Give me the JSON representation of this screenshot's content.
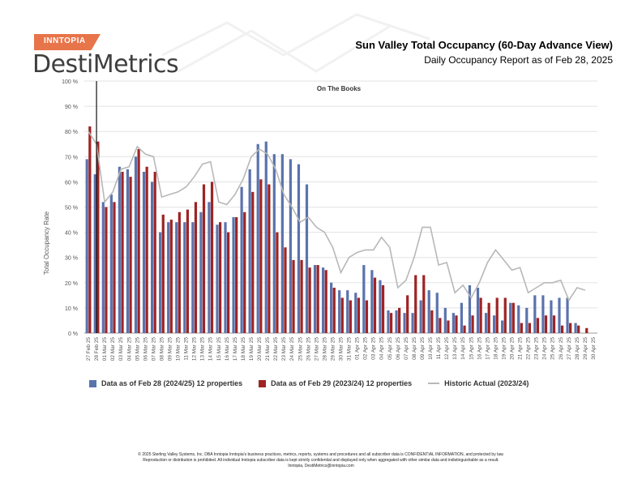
{
  "brand": {
    "tag": "INNTOPIA",
    "name": "DestiMetrics"
  },
  "header": {
    "title": "Sun Valley Total Occupancy (60-Day Advance View)",
    "subtitle": "Daily Occupancy Report as of Feb 28, 2025"
  },
  "colors": {
    "series_current": "#5b73ad",
    "series_prior": "#9e2424",
    "historic": "#b8b8b8",
    "brand_orange": "#e8744a"
  },
  "chart_data": {
    "type": "bar",
    "title": "",
    "annotation": "On The Books",
    "ylabel": "Total Occupancy Rate",
    "xlabel": "",
    "ylim": [
      0,
      100
    ],
    "yticks": [
      "0 %",
      "10 %",
      "20 %",
      "30 %",
      "40 %",
      "50 %",
      "60 %",
      "70 %",
      "80 %",
      "90 %",
      "100 %"
    ],
    "grid": true,
    "legend_position": "bottom",
    "categories": [
      "27 Feb 25",
      "28 Feb 25",
      "01 Mar 25",
      "02 Mar 25",
      "03 Mar 25",
      "04 Mar 25",
      "05 Mar 25",
      "06 Mar 25",
      "07 Mar 25",
      "08 Mar 25",
      "09 Mar 25",
      "10 Mar 25",
      "11 Mar 25",
      "12 Mar 25",
      "13 Mar 25",
      "14 Mar 25",
      "15 Mar 25",
      "16 Mar 25",
      "17 Mar 25",
      "18 Mar 25",
      "19 Mar 25",
      "20 Mar 25",
      "21 Mar 25",
      "22 Mar 25",
      "23 Mar 25",
      "24 Mar 25",
      "25 Mar 25",
      "26 Mar 25",
      "27 Mar 25",
      "28 Mar 25",
      "29 Mar 25",
      "30 Mar 25",
      "31 Mar 25",
      "01 Apr 25",
      "02 Apr 25",
      "03 Apr 25",
      "04 Apr 25",
      "05 Apr 25",
      "06 Apr 25",
      "07 Apr 25",
      "08 Apr 25",
      "09 Apr 25",
      "10 Apr 25",
      "11 Apr 25",
      "12 Apr 25",
      "13 Apr 25",
      "14 Apr 25",
      "15 Apr 25",
      "16 Apr 25",
      "17 Apr 25",
      "18 Apr 25",
      "19 Apr 25",
      "20 Apr 25",
      "21 Apr 25",
      "22 Apr 25",
      "23 Apr 25",
      "24 Apr 25",
      "25 Apr 25",
      "26 Apr 25",
      "27 Apr 25",
      "28 Apr 25",
      "29 Apr 25",
      "30 Apr 25"
    ],
    "series": [
      {
        "name": "Data as of Feb 28 (2024/25) 12 properties",
        "kind": "bar",
        "values": [
          69,
          63,
          52,
          55,
          66,
          65,
          70,
          64,
          60,
          40,
          44,
          44,
          44,
          44,
          48,
          52,
          43,
          44,
          46,
          58,
          65,
          75,
          76,
          71,
          71,
          69,
          67,
          59,
          27,
          26,
          20,
          17,
          17,
          16,
          27,
          25,
          21,
          9,
          9,
          8,
          8,
          13,
          17,
          16,
          10,
          8,
          12,
          19,
          18,
          8,
          7,
          5,
          12,
          11,
          10,
          15,
          15,
          13,
          14,
          14,
          4,
          0,
          0
        ],
        "nulls": [
          false,
          false,
          false,
          false,
          false,
          false,
          false,
          false,
          false,
          false,
          false,
          false,
          false,
          false,
          false,
          false,
          false,
          false,
          false,
          false,
          false,
          false,
          false,
          false,
          false,
          false,
          false,
          false,
          false,
          false,
          false,
          false,
          false,
          false,
          false,
          false,
          false,
          false,
          false,
          false,
          false,
          false,
          false,
          false,
          false,
          false,
          false,
          false,
          false,
          false,
          false,
          false,
          false,
          false,
          false,
          false,
          false,
          false,
          false,
          false,
          false,
          true,
          true
        ]
      },
      {
        "name": "Data as of Feb 29 (2023/24) 12 properties",
        "kind": "bar",
        "values": [
          82,
          76,
          50,
          52,
          64,
          62,
          73,
          66,
          64,
          47,
          45,
          48,
          49,
          52,
          59,
          60,
          44,
          40,
          46,
          48,
          56,
          61,
          59,
          40,
          34,
          29,
          29,
          26,
          27,
          25,
          18,
          14,
          13,
          14,
          13,
          22,
          19,
          8,
          10,
          15,
          23,
          23,
          9,
          6,
          5,
          7,
          3,
          7,
          14,
          12,
          14,
          14,
          12,
          4,
          4,
          6,
          7,
          7,
          3,
          4,
          3,
          2,
          0
        ],
        "nulls": [
          false,
          false,
          false,
          false,
          false,
          false,
          false,
          false,
          false,
          false,
          false,
          false,
          false,
          false,
          false,
          false,
          false,
          false,
          false,
          false,
          false,
          false,
          false,
          false,
          false,
          false,
          false,
          false,
          false,
          false,
          false,
          false,
          false,
          false,
          false,
          false,
          false,
          false,
          false,
          false,
          false,
          false,
          false,
          false,
          false,
          false,
          false,
          false,
          false,
          false,
          false,
          false,
          false,
          false,
          false,
          false,
          false,
          false,
          false,
          false,
          false,
          false,
          true
        ]
      },
      {
        "name": "Historic Actual (2023/24)",
        "kind": "line",
        "values": [
          80,
          75,
          52,
          56,
          65,
          66,
          74,
          71,
          70,
          54,
          55,
          56,
          58,
          62,
          67,
          68,
          52,
          51,
          55,
          61,
          70,
          73,
          71,
          65,
          55,
          50,
          44,
          46,
          42,
          40,
          34,
          24,
          30,
          32,
          33,
          33,
          38,
          34,
          18,
          21,
          30,
          42,
          42,
          27,
          28,
          16,
          19,
          14,
          20,
          28,
          33,
          29,
          25,
          26,
          16,
          18,
          20,
          20,
          21,
          13,
          18,
          17,
          null
        ]
      }
    ]
  },
  "footer": {
    "line1": "© 2025 Sterling Valley Systems, Inc. DBA Inntopia Inntopia's business practices, metrics, reports, systems and procedures and all subscriber data is CONFIDENTIAL INFORMATION, and protected by law.",
    "line2": "Reproduction or distribution is prohibited. All individual Inntopia subscriber data is kept strictly confidential and displayed only when aggregated with other similar data and indistinguishable as a result.",
    "line3": "Inntopia, DestiMetrics@inntopia.com"
  }
}
